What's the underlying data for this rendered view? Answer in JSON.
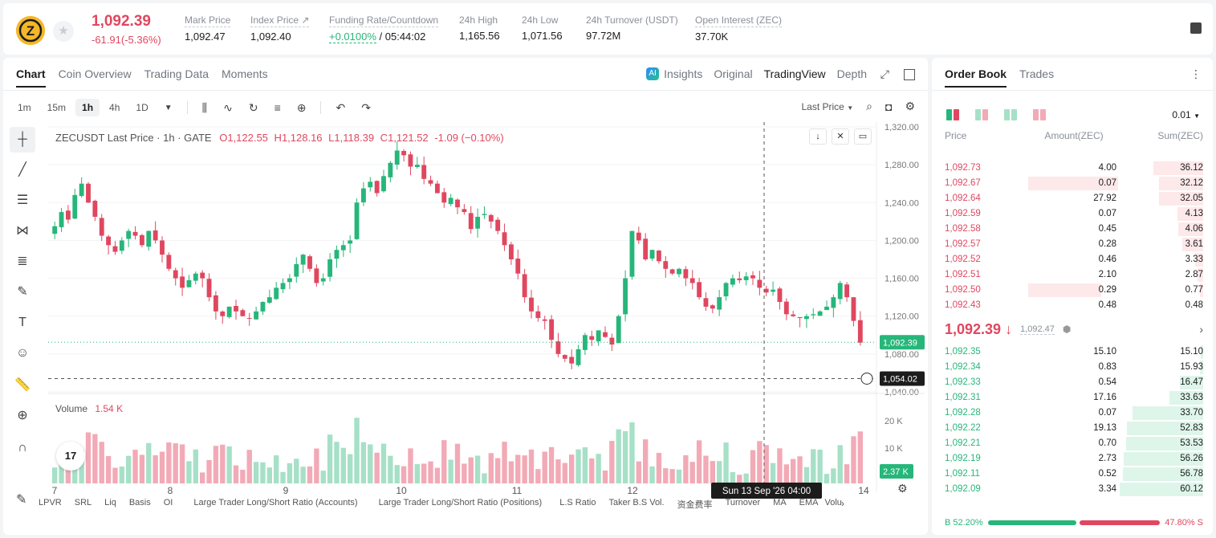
{
  "header": {
    "symbol_letter": "Z",
    "last_price": "1,092.39",
    "change": "-61.91(-5.36%)",
    "stats": [
      {
        "label": "Mark Price",
        "value": "1,092.47"
      },
      {
        "label": "Index Price ↗",
        "value": "1,092.40"
      },
      {
        "label": "Funding Rate/Countdown",
        "value_green": "+0.0100%",
        "value": " / 05:44:02"
      },
      {
        "label": "24h High",
        "value": "1,165.56"
      },
      {
        "label": "24h Low",
        "value": "1,071.56"
      },
      {
        "label": "24h Turnover (USDT)",
        "value": "97.72M"
      },
      {
        "label": "Open Interest (ZEC)",
        "value": "37.70K"
      }
    ]
  },
  "panel_tabs": [
    "Chart",
    "Coin Overview",
    "Trading Data",
    "Moments"
  ],
  "view_tabs": {
    "insights": "Insights",
    "original": "Original",
    "tradingview": "TradingView",
    "depth": "Depth"
  },
  "intervals": [
    "1m",
    "15m",
    "1h",
    "4h",
    "1D"
  ],
  "price_type": "Last Price",
  "ohlc": {
    "symbol": "ZECUSDT Last Price · 1h · GATE",
    "o": "1,122.55",
    "h": "1,128.16",
    "l": "1,118.39",
    "c": "1,121.52",
    "chg": "-1.09 (−0.10%)"
  },
  "volume": {
    "label": "Volume",
    "value": "1.54 K"
  },
  "indicators": [
    "LPVR",
    "SRL",
    "Liq",
    "Basis",
    "OI",
    "Large Trader Long/Short Ratio (Accounts)",
    "Large Trader Long/Short Ratio (Positions)",
    "L.S Ratio",
    "Taker B.S Vol.",
    "资金费率",
    "Turnover",
    "MA",
    "EMA",
    "Volu"
  ],
  "chart_data": {
    "type": "candlestick",
    "y_ticks": [
      "1,320.00",
      "1,280.00",
      "1,240.00",
      "1,200.00",
      "1,160.00",
      "1,120.00",
      "1,080.00",
      "1,040.00"
    ],
    "ylim": [
      1040,
      1320
    ],
    "vol_ticks": [
      "20 K",
      "10 K"
    ],
    "x_ticks": [
      "7",
      "8",
      "9",
      "10",
      "11",
      "12",
      "14"
    ],
    "last_price_label": "1,092.39",
    "crosshair_price_label": "1,054.02",
    "crosshair_time_label": "Sun 13 Sep '26   04:00",
    "volume_last_label": "2.37 K",
    "close_series": [
      1215,
      1230,
      1222,
      1248,
      1260,
      1240,
      1225,
      1205,
      1195,
      1188,
      1200,
      1210,
      1205,
      1195,
      1210,
      1200,
      1185,
      1170,
      1160,
      1150,
      1158,
      1165,
      1160,
      1140,
      1125,
      1120,
      1130,
      1125,
      1120,
      1118,
      1125,
      1135,
      1140,
      1150,
      1155,
      1160,
      1175,
      1185,
      1170,
      1155,
      1160,
      1180,
      1190,
      1195,
      1200,
      1240,
      1255,
      1262,
      1250,
      1268,
      1282,
      1295,
      1290,
      1278,
      1280,
      1265,
      1260,
      1250,
      1240,
      1245,
      1235,
      1230,
      1212,
      1225,
      1228,
      1220,
      1210,
      1195,
      1180,
      1165,
      1140,
      1125,
      1118,
      1115,
      1095,
      1080,
      1075,
      1070,
      1085,
      1100,
      1095,
      1105,
      1098,
      1090,
      1120,
      1160,
      1210,
      1200,
      1180,
      1190,
      1178,
      1170,
      1165,
      1170,
      1160,
      1155,
      1140,
      1130,
      1128,
      1140,
      1155,
      1160,
      1158,
      1162,
      1160,
      1150,
      1145,
      1148,
      1135,
      1122,
      1120,
      1118,
      1120,
      1122,
      1125,
      1130,
      1140,
      1155,
      1140,
      1115,
      1092
    ]
  },
  "orderbook": {
    "tabs": [
      "Order Book",
      "Trades"
    ],
    "precision": "0.01",
    "cols": [
      "Price",
      "Amount(ZEC)",
      "Sum(ZEC)"
    ],
    "asks": [
      {
        "p": "1,092.73",
        "a": "4.00",
        "s": "36.12",
        "sf": 0.6,
        "af": 0.0
      },
      {
        "p": "1,092.67",
        "a": "0.07",
        "s": "32.12",
        "sf": 0.53,
        "af": 0.7
      },
      {
        "p": "1,092.64",
        "a": "27.92",
        "s": "32.05",
        "sf": 0.53,
        "af": 0.0
      },
      {
        "p": "1,092.59",
        "a": "0.07",
        "s": "4.13",
        "sf": 0.31,
        "af": 0.0
      },
      {
        "p": "1,092.58",
        "a": "0.45",
        "s": "4.06",
        "sf": 0.3,
        "af": 0.0
      },
      {
        "p": "1,092.57",
        "a": "0.28",
        "s": "3.61",
        "sf": 0.25,
        "af": 0.0
      },
      {
        "p": "1,092.52",
        "a": "0.46",
        "s": "3.33",
        "sf": 0.1,
        "af": 0.0
      },
      {
        "p": "1,092.51",
        "a": "2.10",
        "s": "2.87",
        "sf": 0.07,
        "af": 0.0
      },
      {
        "p": "1,092.50",
        "a": "0.29",
        "s": "0.77",
        "sf": 0.04,
        "af": 0.57
      },
      {
        "p": "1,092.43",
        "a": "0.48",
        "s": "0.48",
        "sf": 0.0,
        "af": 0.0
      }
    ],
    "mid_price": "1,092.39",
    "mark_price": "1,092.47",
    "bids": [
      {
        "p": "1,092.35",
        "a": "15.10",
        "s": "15.10",
        "sf": 0.03
      },
      {
        "p": "1,092.34",
        "a": "0.83",
        "s": "15.93",
        "sf": 0.04
      },
      {
        "p": "1,092.33",
        "a": "0.54",
        "s": "16.47",
        "sf": 0.28
      },
      {
        "p": "1,092.31",
        "a": "17.16",
        "s": "33.63",
        "sf": 0.4
      },
      {
        "p": "1,092.28",
        "a": "0.07",
        "s": "33.70",
        "sf": 0.85
      },
      {
        "p": "1,092.22",
        "a": "19.13",
        "s": "52.83",
        "sf": 0.91
      },
      {
        "p": "1,092.21",
        "a": "0.70",
        "s": "53.53",
        "sf": 0.92
      },
      {
        "p": "1,092.19",
        "a": "2.73",
        "s": "56.26",
        "sf": 0.95
      },
      {
        "p": "1,092.11",
        "a": "0.52",
        "s": "56.78",
        "sf": 0.96
      },
      {
        "p": "1,092.09",
        "a": "3.34",
        "s": "60.12",
        "sf": 1.0
      }
    ],
    "buy_ratio": "B 52.20%",
    "sell_ratio": "47.80% S",
    "buy_fraction": 0.522
  },
  "colors": {
    "up": "#27b67a",
    "down": "#e0475f",
    "up_vol": "#a6e0c7",
    "down_vol": "#f2aab6"
  }
}
